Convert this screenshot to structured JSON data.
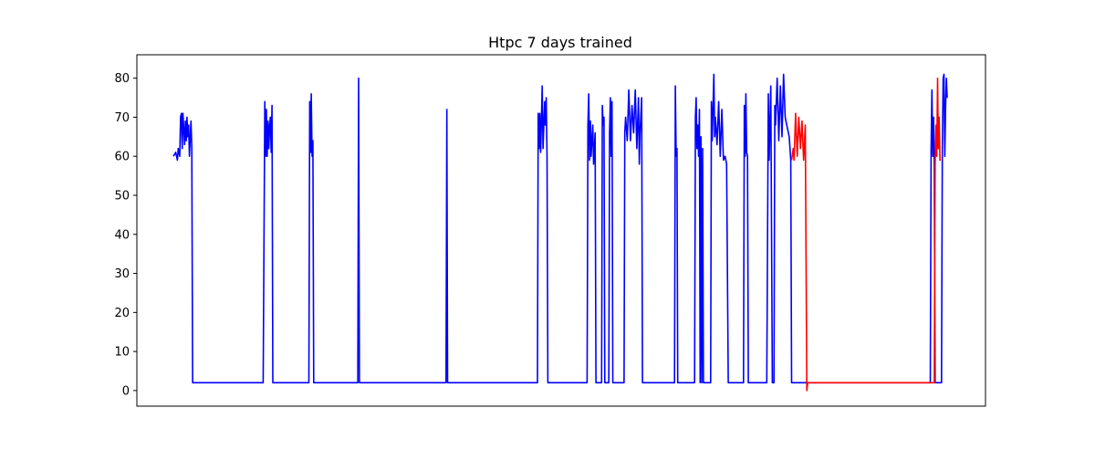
{
  "chart_data": {
    "type": "line",
    "title": "Htpc 7 days trained",
    "xlabel": "",
    "ylabel": "",
    "x_ticks_visible": false,
    "xlim": [
      0,
      100
    ],
    "ylim": [
      -4,
      86
    ],
    "y_ticks": [
      0,
      10,
      20,
      30,
      40,
      50,
      60,
      70,
      80
    ],
    "grid": false,
    "colors": {
      "training": "#0000ff",
      "prediction": "#ff0000"
    },
    "series": [
      {
        "color": "#0000ff",
        "points": [
          [
            0,
            60
          ],
          [
            0.3,
            61
          ],
          [
            0.5,
            59
          ],
          [
            0.6,
            62
          ],
          [
            0.8,
            60
          ],
          [
            0.9,
            70
          ],
          [
            1.0,
            71
          ],
          [
            1.1,
            62
          ],
          [
            1.2,
            71
          ],
          [
            1.4,
            63
          ],
          [
            1.5,
            69
          ],
          [
            1.6,
            64
          ],
          [
            1.7,
            70
          ],
          [
            1.8,
            65
          ],
          [
            1.9,
            68
          ],
          [
            2.0,
            60
          ],
          [
            2.2,
            69
          ],
          [
            2.3,
            62
          ],
          [
            2.4,
            2
          ],
          [
            11.2,
            2
          ],
          [
            11.4,
            74
          ],
          [
            11.5,
            60
          ],
          [
            11.6,
            72
          ],
          [
            11.7,
            60
          ],
          [
            11.8,
            69
          ],
          [
            11.9,
            62
          ],
          [
            12.0,
            68
          ],
          [
            12.1,
            70
          ],
          [
            12.2,
            61
          ],
          [
            12.3,
            73
          ],
          [
            12.4,
            2
          ],
          [
            16.9,
            2
          ],
          [
            17.0,
            74
          ],
          [
            17.1,
            61
          ],
          [
            17.2,
            76
          ],
          [
            17.3,
            60
          ],
          [
            17.4,
            64
          ],
          [
            17.5,
            2
          ],
          [
            23.0,
            2
          ],
          [
            23.1,
            80
          ],
          [
            23.2,
            2
          ],
          [
            34.0,
            2
          ],
          [
            34.1,
            72
          ],
          [
            34.2,
            2
          ],
          [
            45.4,
            2
          ],
          [
            45.5,
            71
          ],
          [
            45.6,
            62
          ],
          [
            45.7,
            71
          ],
          [
            45.8,
            61
          ],
          [
            46.0,
            78
          ],
          [
            46.1,
            62
          ],
          [
            46.3,
            74
          ],
          [
            46.4,
            68
          ],
          [
            46.5,
            75
          ],
          [
            46.6,
            60
          ],
          [
            46.7,
            2
          ],
          [
            51.6,
            2
          ],
          [
            51.7,
            68
          ],
          [
            51.8,
            76
          ],
          [
            51.9,
            59
          ],
          [
            52.0,
            69
          ],
          [
            52.1,
            60
          ],
          [
            52.3,
            68
          ],
          [
            52.4,
            58
          ],
          [
            52.6,
            66
          ],
          [
            52.7,
            2
          ],
          [
            53.4,
            2
          ],
          [
            53.5,
            73
          ],
          [
            53.6,
            68
          ],
          [
            53.7,
            70
          ],
          [
            53.8,
            2
          ],
          [
            54.3,
            2
          ],
          [
            54.4,
            66
          ],
          [
            54.5,
            75
          ],
          [
            54.6,
            60
          ],
          [
            54.7,
            74
          ],
          [
            54.8,
            2
          ],
          [
            56.2,
            2
          ],
          [
            56.3,
            66
          ],
          [
            56.4,
            70
          ],
          [
            56.6,
            64
          ],
          [
            56.8,
            77
          ],
          [
            57.0,
            64
          ],
          [
            57.2,
            73
          ],
          [
            57.4,
            66
          ],
          [
            57.6,
            77
          ],
          [
            57.8,
            62
          ],
          [
            58.0,
            75
          ],
          [
            58.1,
            58
          ],
          [
            58.2,
            66
          ],
          [
            58.4,
            75
          ],
          [
            58.5,
            2
          ],
          [
            62.5,
            2
          ],
          [
            62.6,
            78
          ],
          [
            62.7,
            60
          ],
          [
            62.8,
            62
          ],
          [
            62.9,
            2
          ],
          [
            65.0,
            2
          ],
          [
            65.1,
            70
          ],
          [
            65.2,
            75
          ],
          [
            65.3,
            62
          ],
          [
            65.4,
            68
          ],
          [
            65.5,
            60
          ],
          [
            65.6,
            72
          ],
          [
            65.7,
            2
          ],
          [
            65.8,
            65
          ],
          [
            65.9,
            2
          ],
          [
            66.0,
            62
          ],
          [
            66.1,
            2
          ],
          [
            67.0,
            2
          ],
          [
            67.1,
            74
          ],
          [
            67.2,
            64
          ],
          [
            67.4,
            81
          ],
          [
            67.5,
            65
          ],
          [
            67.6,
            70
          ],
          [
            67.8,
            63
          ],
          [
            68.0,
            74
          ],
          [
            68.2,
            60
          ],
          [
            68.4,
            72
          ],
          [
            68.6,
            59
          ],
          [
            68.8,
            60
          ],
          [
            69.0,
            58
          ],
          [
            69.2,
            2
          ],
          [
            71.1,
            2
          ],
          [
            71.2,
            73
          ],
          [
            71.3,
            60
          ],
          [
            71.4,
            76
          ],
          [
            71.5,
            61
          ],
          [
            71.6,
            60
          ],
          [
            71.7,
            2
          ],
          [
            73.0,
            2
          ],
          [
            73.1,
            2
          ],
          [
            74.0,
            2
          ],
          [
            74.2,
            76
          ],
          [
            74.3,
            59
          ],
          [
            74.5,
            78
          ],
          [
            74.7,
            2
          ],
          [
            74.9,
            2
          ],
          [
            75.0,
            73
          ],
          [
            75.1,
            68
          ],
          [
            75.3,
            80
          ],
          [
            75.5,
            64
          ],
          [
            75.7,
            78
          ],
          [
            75.9,
            65
          ],
          [
            76.1,
            81
          ],
          [
            76.3,
            70
          ],
          [
            76.5,
            68
          ],
          [
            76.8,
            65
          ],
          [
            77.0,
            59
          ],
          [
            77.1,
            2
          ],
          [
            94.4,
            2
          ],
          [
            94.5,
            62
          ],
          [
            94.6,
            77
          ],
          [
            94.7,
            60
          ],
          [
            94.8,
            70
          ],
          [
            94.9,
            58
          ],
          [
            95.0,
            2
          ],
          [
            95.8,
            2
          ],
          [
            95.9,
            62
          ],
          [
            96.0,
            80
          ],
          [
            96.1,
            81
          ],
          [
            96.2,
            60
          ],
          [
            96.3,
            72
          ],
          [
            96.4,
            80
          ],
          [
            96.5,
            75
          ]
        ]
      },
      {
        "color": "#ff0000",
        "points": [
          [
            77.1,
            59
          ],
          [
            77.3,
            62
          ],
          [
            77.4,
            59
          ],
          [
            77.6,
            71
          ],
          [
            77.8,
            60
          ],
          [
            78.0,
            70
          ],
          [
            78.2,
            62
          ],
          [
            78.4,
            69
          ],
          [
            78.6,
            59
          ],
          [
            78.8,
            68
          ],
          [
            79.0,
            0
          ],
          [
            79.1,
            2
          ],
          [
            94.9,
            2
          ],
          [
            95.0,
            58
          ],
          [
            95.1,
            68
          ],
          [
            95.2,
            60
          ],
          [
            95.3,
            80
          ],
          [
            95.4,
            62
          ],
          [
            95.5,
            70
          ],
          [
            95.6,
            59
          ],
          [
            95.7,
            59
          ]
        ]
      }
    ]
  }
}
